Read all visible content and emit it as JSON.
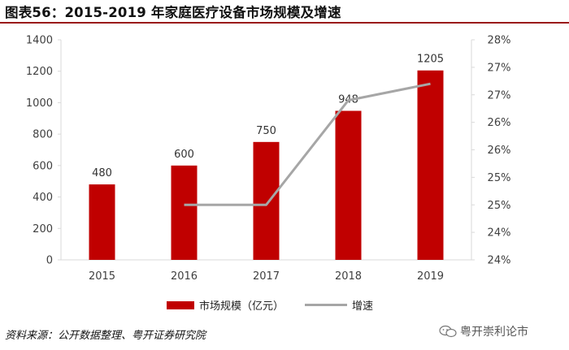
{
  "title": "图表56：2015-2019 年家庭医疗设备市场规模及增速",
  "source": "资料来源：公开数据整理、粤开证券研究院",
  "watermark": "粤开崇利论市",
  "colors": {
    "bar": "#c00000",
    "line": "#a6a6a6",
    "title_rule": "#9a1b1b",
    "axis": "#d9d9d9",
    "text": "#404040"
  },
  "chart_data": {
    "type": "bar+line",
    "categories": [
      "2015",
      "2016",
      "2017",
      "2018",
      "2019"
    ],
    "series": [
      {
        "name": "市场规模（亿元）",
        "type": "bar",
        "axis": "left",
        "values": [
          480,
          600,
          750,
          948,
          1205
        ],
        "labels": [
          "480",
          "600",
          "750",
          "948",
          "1205"
        ]
      },
      {
        "name": "增速",
        "type": "line",
        "axis": "right",
        "values": [
          null,
          25.0,
          25.0,
          26.9,
          27.2
        ]
      }
    ],
    "y_left": {
      "min": 0,
      "max": 1400,
      "ticks": [
        "0",
        "200",
        "400",
        "600",
        "800",
        "1000",
        "1200",
        "1400"
      ]
    },
    "y_right": {
      "min": 24,
      "max": 28,
      "ticks": [
        "24%",
        "24%",
        "25%",
        "25%",
        "26%",
        "26%",
        "27%",
        "27%",
        "28%"
      ]
    },
    "legend": {
      "position": "bottom-center",
      "bar_label": "市场规模（亿元）",
      "line_label": "增速"
    }
  }
}
